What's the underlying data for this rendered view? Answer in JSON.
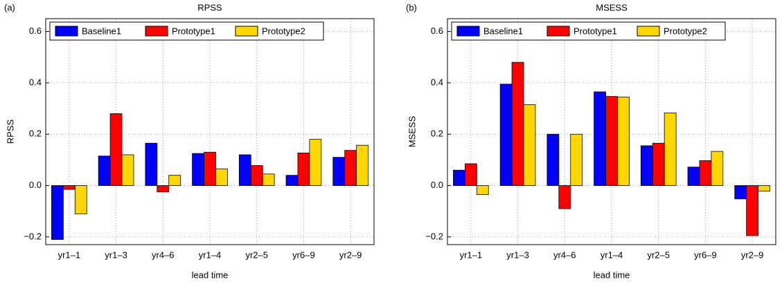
{
  "chart_data": [
    {
      "type": "bar",
      "panel": "(a)",
      "title": "RPSS",
      "xlabel": "lead time",
      "ylabel": "RPSS",
      "categories": [
        "yr1–1",
        "yr1–3",
        "yr4–6",
        "yr1–4",
        "yr2–5",
        "yr6–9",
        "yr2–9"
      ],
      "series": [
        {
          "name": "Baseline1",
          "color": "#0000ff",
          "values": [
            -0.21,
            0.115,
            0.165,
            0.125,
            0.12,
            0.04,
            0.11
          ]
        },
        {
          "name": "Prototype1",
          "color": "#ff0000",
          "values": [
            -0.015,
            0.28,
            -0.025,
            0.13,
            0.078,
            0.127,
            0.137
          ]
        },
        {
          "name": "Prototype2",
          "color": "#ffd700",
          "values": [
            -0.11,
            0.12,
            0.04,
            0.065,
            0.045,
            0.18,
            0.157
          ]
        }
      ],
      "ylim": [
        -0.23,
        0.65
      ],
      "yticks": [
        {
          "value": -0.2,
          "label": "−0.2"
        },
        {
          "value": 0,
          "label": "0.0"
        },
        0.2,
        0.4,
        0.6
      ],
      "grid": true,
      "legend": "upper left"
    },
    {
      "type": "bar",
      "panel": "(b)",
      "title": "MSESS",
      "xlabel": "lead time",
      "ylabel": "MSESS",
      "categories": [
        "yr1–1",
        "yr1–3",
        "yr4–6",
        "yr1–4",
        "yr2–5",
        "yr6–9",
        "yr2–9"
      ],
      "series": [
        {
          "name": "Baseline1",
          "color": "#0000ff",
          "values": [
            0.06,
            0.395,
            0.2,
            0.365,
            0.155,
            0.072,
            -0.052
          ]
        },
        {
          "name": "Prototype1",
          "color": "#ff0000",
          "values": [
            0.085,
            0.48,
            -0.09,
            0.347,
            0.165,
            0.097,
            -0.195
          ]
        },
        {
          "name": "Prototype2",
          "color": "#ffd700",
          "values": [
            -0.035,
            0.315,
            0.2,
            0.345,
            0.283,
            0.133,
            -0.022
          ]
        }
      ],
      "ylim": [
        -0.23,
        0.65
      ],
      "yticks": [
        {
          "value": -0.2,
          "label": "−0.2"
        },
        {
          "value": 0,
          "label": "0.0"
        },
        0.2,
        0.4,
        0.6
      ],
      "grid": true,
      "legend": "upper left"
    }
  ]
}
